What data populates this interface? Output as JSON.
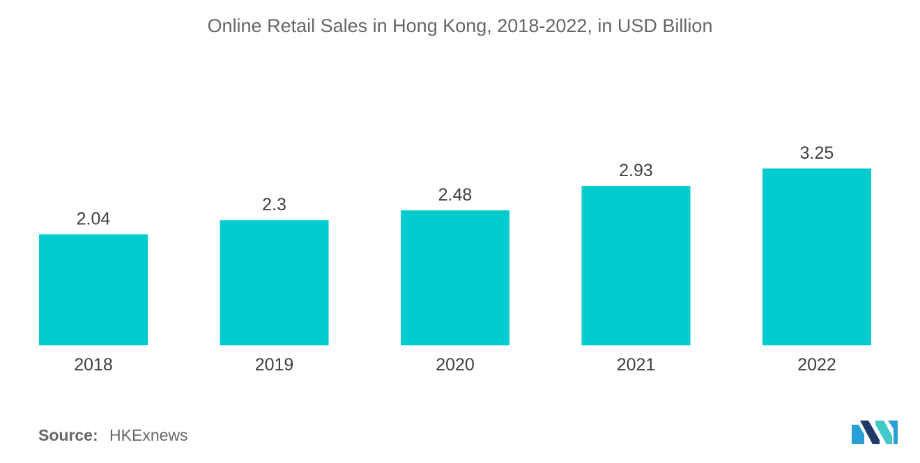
{
  "chart_data": {
    "type": "bar",
    "title": "Online Retail Sales in Hong Kong, 2018-2022, in USD Billion",
    "categories": [
      "2018",
      "2019",
      "2020",
      "2021",
      "2022"
    ],
    "values": [
      2.04,
      2.3,
      2.48,
      2.93,
      3.25
    ],
    "value_labels": [
      "2.04",
      "2.3",
      "2.48",
      "2.93",
      "3.25"
    ],
    "ylim": [
      0,
      3.25
    ],
    "grid": false,
    "bar_color": "#00cccf"
  },
  "source": {
    "label": "Source:",
    "value": "HKExnews"
  },
  "logo": {
    "icon": "mordor-intelligence-logo-icon",
    "colors": [
      "#2a9fd6",
      "#1f3a68",
      "#42c8c8"
    ]
  }
}
